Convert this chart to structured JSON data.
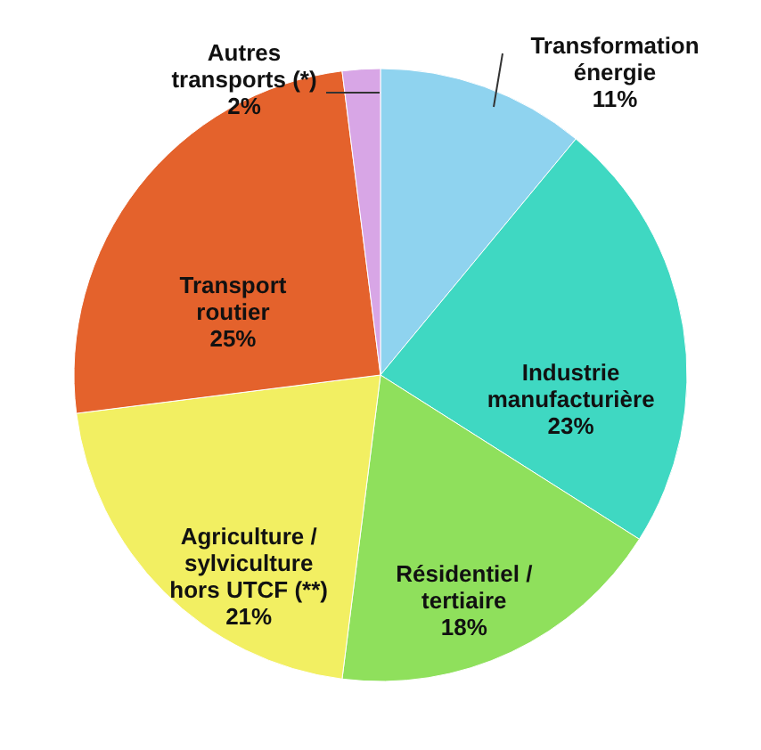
{
  "chart_data": {
    "type": "pie",
    "categories": [
      "Transformation énergie",
      "Industrie manufacturière",
      "Résidentiel / tertiaire",
      "Agriculture / sylviculture hors UTCF (**)",
      "Transport routier",
      "Autres transports (*)"
    ],
    "values": [
      11,
      23,
      18,
      21,
      25,
      2
    ],
    "value_labels": [
      "11%",
      "23%",
      "18%",
      "21%",
      "25%",
      "2%"
    ],
    "colors": [
      "#8fd3ef",
      "#3fd8c2",
      "#8fe05c",
      "#f2ef62",
      "#e4622c",
      "#d8a6e6"
    ]
  }
}
